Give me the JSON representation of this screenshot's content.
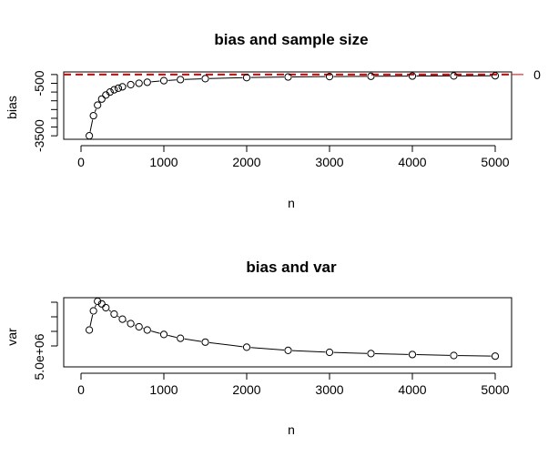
{
  "chart_data": [
    {
      "type": "scatter",
      "title": "bias and sample size",
      "xlabel": "n",
      "ylabel": "bias",
      "xlim": [
        -100,
        5200
      ],
      "ylim": [
        -3700,
        150
      ],
      "x_ticks": [
        0,
        1000,
        2000,
        3000,
        4000,
        5000
      ],
      "x_tick_labels": [
        "0",
        "1000",
        "2000",
        "3000",
        "4000",
        "5000"
      ],
      "y_ticks": [
        -3500,
        -3000,
        -2500,
        -2000,
        -1500,
        -1000,
        -500,
        0
      ],
      "y_tick_labels": [
        "-3500",
        "",
        "",
        "",
        "",
        "",
        "-500",
        ""
      ],
      "reference_line": {
        "y": 0,
        "color": "#e00000",
        "style": "dashed",
        "label": "0"
      },
      "grid": false,
      "series": [
        {
          "x": [
            100,
            150,
            200,
            250,
            300,
            350,
            400,
            450,
            500,
            600,
            700,
            800,
            1000,
            1200,
            1500,
            2000,
            2500,
            3000,
            3500,
            4000,
            4500,
            5000
          ],
          "y": [
            -3500,
            -2350,
            -1750,
            -1400,
            -1170,
            -1000,
            -870,
            -780,
            -700,
            -580,
            -500,
            -440,
            -350,
            -290,
            -235,
            -175,
            -140,
            -117,
            -100,
            -88,
            -78,
            -70
          ]
        }
      ]
    },
    {
      "type": "scatter",
      "title": "bias and var",
      "xlabel": "n",
      "ylabel": "var",
      "xlim": [
        -100,
        5200
      ],
      "x_ticks": [
        0,
        1000,
        2000,
        3000,
        4000,
        5000
      ],
      "x_tick_labels": [
        "0",
        "1000",
        "2000",
        "3000",
        "4000",
        "5000"
      ],
      "y_tick_labels": [
        "5.0e+06"
      ],
      "grid": false,
      "series": [
        {
          "x": [
            100,
            150,
            200,
            250,
            300,
            400,
            500,
            600,
            700,
            800,
            1000,
            1200,
            1500,
            2000,
            2500,
            3000,
            3500,
            4000,
            4500,
            5000
          ],
          "y": [
            0.55,
            0.85,
            1.0,
            0.96,
            0.9,
            0.8,
            0.72,
            0.65,
            0.6,
            0.55,
            0.48,
            0.42,
            0.36,
            0.28,
            0.23,
            0.2,
            0.18,
            0.165,
            0.15,
            0.14
          ]
        }
      ]
    }
  ]
}
